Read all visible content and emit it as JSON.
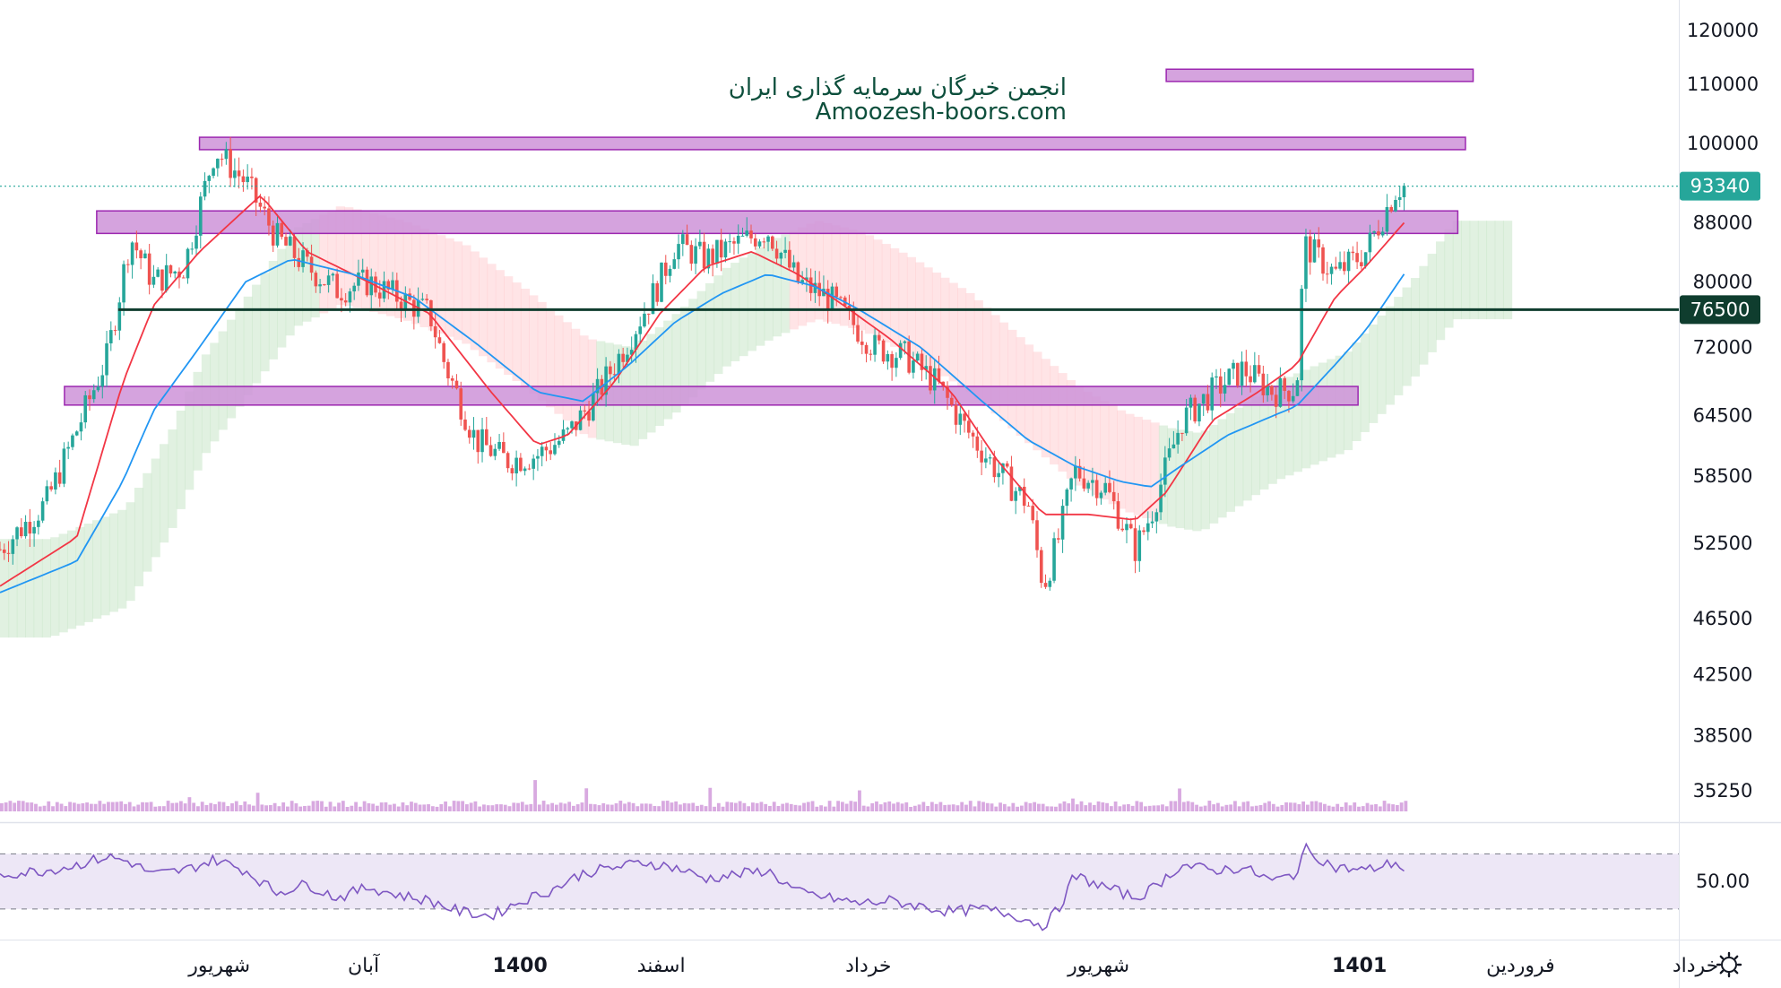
{
  "watermark": {
    "line1": "انجمن خبرگان سرمایه گذاری ایران",
    "line2": "Amoozesh-boors.com"
  },
  "colors": {
    "up": "#26a69a",
    "down": "#ef5350",
    "ma_fast": "#f23645",
    "ma_slow": "#2196f3",
    "zone": "#ce93d8",
    "zone_border": "#9c27b0",
    "support_line": "#0f3d2e",
    "last_price_badge": "#26a69a",
    "support_badge": "#0f3d2e",
    "cloud_green": "#c8e6c9",
    "cloud_red": "#ffcdd2",
    "rsi_line": "#7e57c2",
    "rsi_band": "#ede7f6",
    "volume": "#ce93d8"
  },
  "chart_data": {
    "type": "candlestick",
    "price_axis": {
      "ticks": [
        "120000",
        "110000",
        "100000",
        "88000",
        "80000",
        "72000",
        "64500",
        "58500",
        "52500",
        "46500",
        "42500",
        "38500",
        "35250"
      ],
      "scale": "log",
      "range": [
        33500,
        126000
      ]
    },
    "last_price": "93340",
    "support_level": "76500",
    "zones": [
      {
        "from": 99000,
        "to": 101000,
        "period_start": 0.13,
        "period_end": 0.955
      },
      {
        "from": 110500,
        "to": 112700,
        "period_start": 0.76,
        "period_end": 0.96
      },
      {
        "from": 86500,
        "to": 89700,
        "period_start": 0.063,
        "period_end": 0.95
      },
      {
        "from": 65600,
        "to": 67600,
        "period_start": 0.042,
        "period_end": 0.885
      }
    ],
    "time_axis": [
      "شهریور",
      "آبان",
      "1400",
      "اسفند",
      "خرداد",
      "شهریور",
      "1401",
      "فروردین",
      "خرداد"
    ],
    "time_axis_bold": [
      "1400",
      "1401"
    ],
    "close_path": [
      [
        0.0,
        52000
      ],
      [
        0.03,
        56000
      ],
      [
        0.05,
        63000
      ],
      [
        0.07,
        71000
      ],
      [
        0.085,
        86000
      ],
      [
        0.1,
        80000
      ],
      [
        0.12,
        82000
      ],
      [
        0.14,
        99000
      ],
      [
        0.16,
        94000
      ],
      [
        0.18,
        86000
      ],
      [
        0.2,
        82000
      ],
      [
        0.22,
        79000
      ],
      [
        0.24,
        80000
      ],
      [
        0.26,
        78000
      ],
      [
        0.28,
        76000
      ],
      [
        0.29,
        70000
      ],
      [
        0.31,
        62000
      ],
      [
        0.33,
        60000
      ],
      [
        0.35,
        60500
      ],
      [
        0.37,
        62500
      ],
      [
        0.39,
        67000
      ],
      [
        0.41,
        73000
      ],
      [
        0.43,
        80000
      ],
      [
        0.44,
        85000
      ],
      [
        0.46,
        83000
      ],
      [
        0.48,
        85000
      ],
      [
        0.5,
        87000
      ],
      [
        0.52,
        80000
      ],
      [
        0.54,
        78000
      ],
      [
        0.55,
        76000
      ],
      [
        0.57,
        72000
      ],
      [
        0.59,
        71000
      ],
      [
        0.61,
        68000
      ],
      [
        0.63,
        63000
      ],
      [
        0.65,
        59000
      ],
      [
        0.67,
        56000
      ],
      [
        0.68,
        49000
      ],
      [
        0.69,
        53000
      ],
      [
        0.7,
        59000
      ],
      [
        0.72,
        57500
      ],
      [
        0.74,
        52000
      ],
      [
        0.75,
        55000
      ],
      [
        0.77,
        64000
      ],
      [
        0.79,
        67000
      ],
      [
        0.81,
        69500
      ],
      [
        0.83,
        67000
      ],
      [
        0.845,
        67500
      ],
      [
        0.85,
        85000
      ],
      [
        0.87,
        81000
      ],
      [
        0.89,
        84000
      ],
      [
        0.91,
        93000
      ],
      [
        0.915,
        93340
      ]
    ],
    "moving_averages": [
      {
        "color_key": "ma_fast",
        "points": [
          [
            0.0,
            49000
          ],
          [
            0.05,
            53000
          ],
          [
            0.08,
            68000
          ],
          [
            0.1,
            77000
          ],
          [
            0.13,
            84000
          ],
          [
            0.17,
            92000
          ],
          [
            0.2,
            84000
          ],
          [
            0.24,
            80000
          ],
          [
            0.28,
            76000
          ],
          [
            0.32,
            67000
          ],
          [
            0.35,
            61500
          ],
          [
            0.37,
            62500
          ],
          [
            0.4,
            68000
          ],
          [
            0.43,
            76000
          ],
          [
            0.46,
            82000
          ],
          [
            0.49,
            84000
          ],
          [
            0.52,
            81000
          ],
          [
            0.55,
            77000
          ],
          [
            0.58,
            73000
          ],
          [
            0.62,
            67000
          ],
          [
            0.65,
            60000
          ],
          [
            0.68,
            55000
          ],
          [
            0.71,
            55000
          ],
          [
            0.74,
            54500
          ],
          [
            0.76,
            57000
          ],
          [
            0.79,
            64000
          ],
          [
            0.82,
            67000
          ],
          [
            0.845,
            70000
          ],
          [
            0.87,
            78000
          ],
          [
            0.89,
            82000
          ],
          [
            0.915,
            88000
          ]
        ]
      },
      {
        "color_key": "ma_slow",
        "points": [
          [
            0.0,
            48500
          ],
          [
            0.05,
            51000
          ],
          [
            0.08,
            58000
          ],
          [
            0.1,
            65000
          ],
          [
            0.13,
            72000
          ],
          [
            0.16,
            80000
          ],
          [
            0.19,
            83000
          ],
          [
            0.23,
            81000
          ],
          [
            0.27,
            78000
          ],
          [
            0.31,
            72500
          ],
          [
            0.35,
            67000
          ],
          [
            0.38,
            66000
          ],
          [
            0.41,
            70000
          ],
          [
            0.44,
            75000
          ],
          [
            0.47,
            78500
          ],
          [
            0.5,
            81000
          ],
          [
            0.53,
            79500
          ],
          [
            0.56,
            76500
          ],
          [
            0.6,
            72000
          ],
          [
            0.64,
            66000
          ],
          [
            0.67,
            62000
          ],
          [
            0.7,
            59500
          ],
          [
            0.73,
            58000
          ],
          [
            0.75,
            57500
          ],
          [
            0.77,
            59500
          ],
          [
            0.8,
            62500
          ],
          [
            0.83,
            64500
          ],
          [
            0.845,
            65500
          ],
          [
            0.87,
            70000
          ],
          [
            0.89,
            74000
          ],
          [
            0.915,
            81000
          ]
        ]
      }
    ],
    "rsi": {
      "label": "50.00",
      "upper": 70,
      "lower": 30,
      "points": [
        [
          0.0,
          55
        ],
        [
          0.03,
          58
        ],
        [
          0.05,
          62
        ],
        [
          0.07,
          68
        ],
        [
          0.085,
          64
        ],
        [
          0.1,
          55
        ],
        [
          0.12,
          58
        ],
        [
          0.14,
          66
        ],
        [
          0.16,
          58
        ],
        [
          0.18,
          42
        ],
        [
          0.2,
          48
        ],
        [
          0.22,
          38
        ],
        [
          0.24,
          46
        ],
        [
          0.26,
          40
        ],
        [
          0.28,
          36
        ],
        [
          0.3,
          28
        ],
        [
          0.32,
          25
        ],
        [
          0.34,
          36
        ],
        [
          0.36,
          44
        ],
        [
          0.38,
          56
        ],
        [
          0.4,
          60
        ],
        [
          0.42,
          64
        ],
        [
          0.44,
          60
        ],
        [
          0.46,
          52
        ],
        [
          0.48,
          55
        ],
        [
          0.5,
          58
        ],
        [
          0.52,
          42
        ],
        [
          0.54,
          38
        ],
        [
          0.56,
          34
        ],
        [
          0.58,
          36
        ],
        [
          0.6,
          32
        ],
        [
          0.62,
          28
        ],
        [
          0.64,
          30
        ],
        [
          0.66,
          26
        ],
        [
          0.68,
          18
        ],
        [
          0.69,
          30
        ],
        [
          0.7,
          54
        ],
        [
          0.72,
          46
        ],
        [
          0.74,
          38
        ],
        [
          0.75,
          44
        ],
        [
          0.77,
          62
        ],
        [
          0.79,
          58
        ],
        [
          0.81,
          60
        ],
        [
          0.83,
          50
        ],
        [
          0.845,
          56
        ],
        [
          0.85,
          74
        ],
        [
          0.87,
          60
        ],
        [
          0.89,
          58
        ],
        [
          0.91,
          64
        ],
        [
          0.915,
          58
        ]
      ]
    }
  }
}
